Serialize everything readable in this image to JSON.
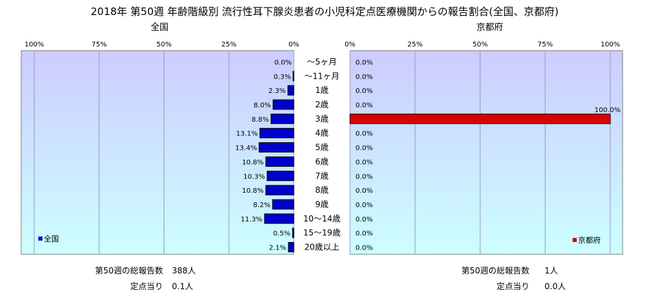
{
  "title": "2018年 第50週 年齢階級別 流行性耳下腺炎患者の小児科定点医療機関からの報告割合(全国、京都府)",
  "colors": {
    "national_bar": "#0000cc",
    "kyoto_bar": "#dd0000",
    "plot_top": "#ccccff",
    "plot_bottom": "#ccffff",
    "grid": "#9999bb"
  },
  "chart_data": [
    {
      "type": "bar",
      "orientation": "horizontal",
      "direction": "reversed",
      "title": "全国",
      "categories": [
        "～5ヶ月",
        "～11ヶ月",
        "1歳",
        "2歳",
        "3歳",
        "4歳",
        "5歳",
        "6歳",
        "7歳",
        "8歳",
        "9歳",
        "10～14歳",
        "15～19歳",
        "20歳以上"
      ],
      "series": [
        {
          "name": "全国",
          "values": [
            0.0,
            0.3,
            2.3,
            8.0,
            8.8,
            13.1,
            13.4,
            10.8,
            10.3,
            10.8,
            8.2,
            11.3,
            0.5,
            2.1
          ],
          "labels": [
            "0.0%",
            "0.3%",
            "2.3%",
            "8.0%",
            "8.8%",
            "13.1%",
            "13.4%",
            "10.8%",
            "10.3%",
            "10.8%",
            "8.2%",
            "11.3%",
            "0.5%",
            "2.1%"
          ]
        }
      ],
      "xlim": [
        0,
        100
      ],
      "ticks": [
        "100%",
        "75%",
        "50%",
        "25%",
        "0%"
      ],
      "grid": true,
      "legend": "bottom-left"
    },
    {
      "type": "bar",
      "orientation": "horizontal",
      "title": "京都府",
      "categories": [
        "～5ヶ月",
        "～11ヶ月",
        "1歳",
        "2歳",
        "3歳",
        "4歳",
        "5歳",
        "6歳",
        "7歳",
        "8歳",
        "9歳",
        "10～14歳",
        "15～19歳",
        "20歳以上"
      ],
      "series": [
        {
          "name": "京都府",
          "values": [
            0.0,
            0.0,
            0.0,
            0.0,
            100.0,
            0.0,
            0.0,
            0.0,
            0.0,
            0.0,
            0.0,
            0.0,
            0.0,
            0.0
          ],
          "labels": [
            "0.0%",
            "0.0%",
            "0.0%",
            "0.0%",
            "100.0%",
            "0.0%",
            "0.0%",
            "0.0%",
            "0.0%",
            "0.0%",
            "0.0%",
            "0.0%",
            "0.0%",
            "0.0%"
          ]
        }
      ],
      "xlim": [
        0,
        100
      ],
      "ticks": [
        "0%",
        "25%",
        "50%",
        "75%",
        "100%"
      ],
      "grid": true,
      "legend": "bottom-right"
    }
  ],
  "summary": {
    "national": {
      "total_label": "第50週の総報告数",
      "total_value": "388人",
      "per_label": "定点当り",
      "per_value": "0.1人"
    },
    "kyoto": {
      "total_label": "第50週の総報告数",
      "total_value": "1人",
      "per_label": "定点当り",
      "per_value": "0.0人"
    }
  }
}
